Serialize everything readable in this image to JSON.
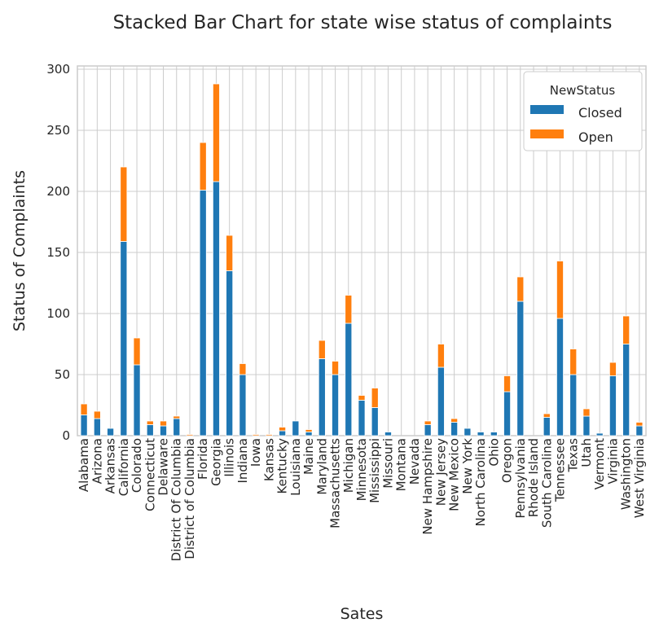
{
  "chart_data": {
    "type": "bar",
    "stacked": true,
    "title": "Stacked Bar Chart for state wise status of complaints",
    "xlabel": "Sates",
    "ylabel": "Status  of  Complaints",
    "ylim": [
      0,
      300
    ],
    "yticks": [
      0,
      50,
      100,
      150,
      200,
      250,
      300
    ],
    "grid": true,
    "legend": {
      "title": "NewStatus",
      "placement": "top-right"
    },
    "categories": [
      "Alabama",
      "Arizona",
      "Arkansas",
      "California",
      "Colorado",
      "Connecticut",
      "Delaware",
      "District Of Columbia",
      "District of Columbia",
      "Florida",
      "Georgia",
      "Illinois",
      "Indiana",
      "Iowa",
      "Kansas",
      "Kentucky",
      "Louisiana",
      "Maine",
      "Maryland",
      "Massachusetts",
      "Michigan",
      "Minnesota",
      "Mississippi",
      "Missouri",
      "Montana",
      "Nevada",
      "New Hampshire",
      "New Jersey",
      "New Mexico",
      "New York",
      "North Carolina",
      "Ohio",
      "Oregon",
      "Pennsylvania",
      "Rhode Island",
      "South Carolina",
      "Tennessee",
      "Texas",
      "Utah",
      "Vermont",
      "Virginia",
      "Washington",
      "West Virginia"
    ],
    "series": [
      {
        "name": "Closed",
        "color": "#1f77b4",
        "values": [
          17,
          14,
          6,
          159,
          58,
          9,
          8,
          14,
          0,
          201,
          208,
          135,
          50,
          0,
          0,
          4,
          12,
          3,
          63,
          50,
          92,
          29,
          23,
          3,
          0,
          0,
          9,
          56,
          11,
          6,
          3,
          3,
          36,
          110,
          0,
          15,
          96,
          50,
          16,
          2,
          49,
          75,
          8
        ]
      },
      {
        "name": "Open",
        "color": "#ff7f0e",
        "values": [
          9,
          6,
          0,
          61,
          22,
          3,
          4,
          2,
          1,
          39,
          80,
          29,
          9,
          1,
          1,
          3,
          0,
          2,
          15,
          11,
          23,
          4,
          16,
          0,
          0,
          0,
          3,
          19,
          3,
          0,
          0,
          0,
          13,
          20,
          0,
          3,
          47,
          21,
          6,
          0,
          11,
          23,
          3
        ]
      }
    ]
  }
}
